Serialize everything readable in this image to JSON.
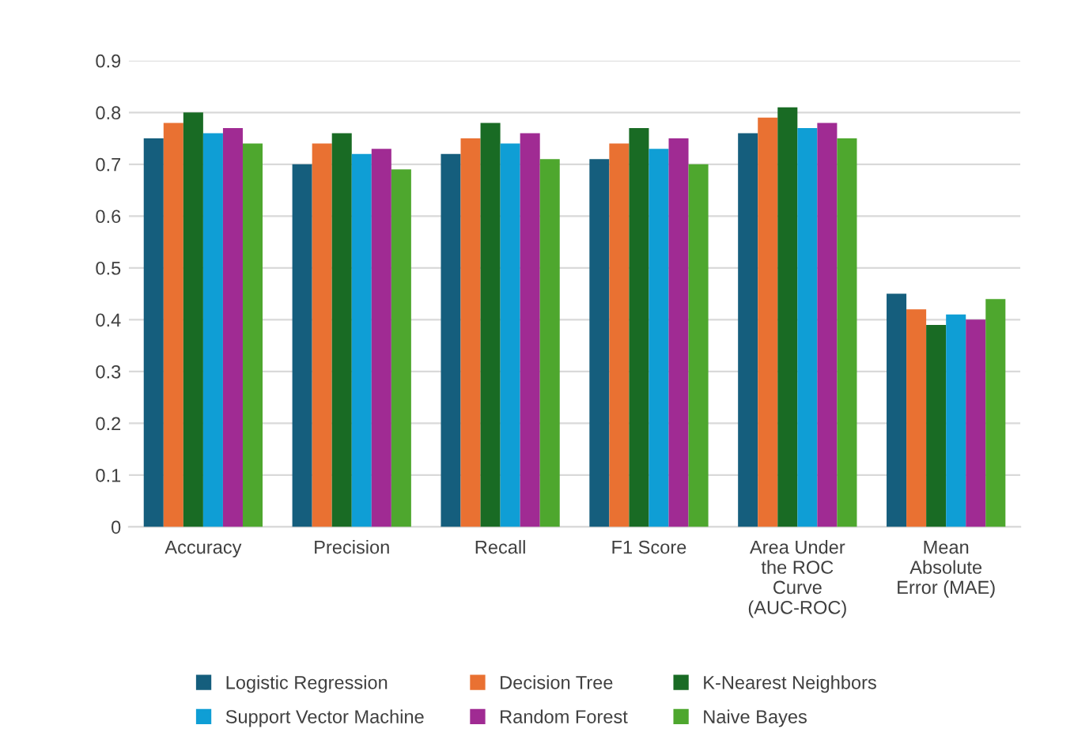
{
  "chart_data": {
    "type": "bar",
    "categories": [
      "Accuracy",
      "Precision",
      "Recall",
      "F1 Score",
      "Area Under\nthe ROC\nCurve\n(AUC-ROC)",
      "Mean\nAbsolute\nError (MAE)"
    ],
    "series": [
      {
        "name": "Logistic Regression",
        "color": "#155e7d",
        "values": [
          0.75,
          0.7,
          0.72,
          0.71,
          0.76,
          0.45
        ]
      },
      {
        "name": "Decision Tree",
        "color": "#e97132",
        "values": [
          0.78,
          0.74,
          0.75,
          0.74,
          0.79,
          0.42
        ]
      },
      {
        "name": "K-Nearest Neighbors",
        "color": "#196b24",
        "values": [
          0.8,
          0.76,
          0.78,
          0.77,
          0.81,
          0.39
        ]
      },
      {
        "name": "Support Vector Machine",
        "color": "#0f9ed5",
        "values": [
          0.76,
          0.72,
          0.74,
          0.73,
          0.77,
          0.41
        ]
      },
      {
        "name": "Random Forest",
        "color": "#a02b93",
        "values": [
          0.77,
          0.73,
          0.76,
          0.75,
          0.78,
          0.4
        ]
      },
      {
        "name": "Naive Bayes",
        "color": "#4ea72e",
        "values": [
          0.74,
          0.69,
          0.71,
          0.7,
          0.75,
          0.44
        ]
      }
    ],
    "ylim": [
      0,
      0.9
    ],
    "yticks": [
      0,
      0.1,
      0.2,
      0.3,
      0.4,
      0.5,
      0.6,
      0.7,
      0.8,
      0.9
    ],
    "grid": "y",
    "legend": "bottom"
  }
}
